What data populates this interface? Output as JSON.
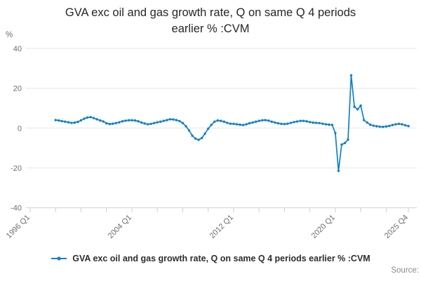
{
  "chart": {
    "title": "GVA exc oil and gas growth rate, Q on same Q 4 periods earlier % :CVM",
    "title_line1": "GVA exc oil and gas growth rate, Q on same Q 4 periods",
    "title_line2": "earlier % :CVM",
    "y_unit": "%"
  },
  "legend": {
    "series_label": "GVA exc oil and gas growth rate, Q on same Q 4 periods earlier % :CVM"
  },
  "footer": {
    "source": "Source:"
  },
  "colors": {
    "line": "#1380c4",
    "grid": "#e6e6e6",
    "axis": "#c6d0e2",
    "tick_text": "#6d6d6d"
  },
  "chart_data": {
    "type": "line",
    "title": "GVA exc oil and gas growth rate, Q on same Q 4 periods earlier % :CVM",
    "xlabel": "",
    "ylabel": "%",
    "ylim": [
      -40,
      40
    ],
    "y_ticks": [
      40,
      20,
      0,
      -20,
      -40
    ],
    "grid": "horizontal",
    "legend_position": "bottom",
    "x_axis": {
      "minor_ticks_years": [
        1996,
        1998,
        2000,
        2002,
        2004,
        2006,
        2008,
        2010,
        2012,
        2014,
        2016,
        2018,
        2020,
        2022,
        2024,
        2025.75
      ],
      "labeled_ticks": [
        {
          "label": "1996 Q1",
          "year": 1996.0
        },
        {
          "label": "2004 Q1",
          "year": 2004.0
        },
        {
          "label": "2012 Q1",
          "year": 2012.0
        },
        {
          "label": "2020 Q1",
          "year": 2020.0
        },
        {
          "label": "2025 Q4",
          "year": 2025.75
        }
      ]
    },
    "series": [
      {
        "name": "GVA exc oil and gas growth rate, Q on same Q 4 periods earlier % :CVM",
        "start_period": "1998 Q1",
        "start_year_frac": 1998.0,
        "period_step_years": 0.25,
        "values": [
          4.0,
          3.8,
          3.5,
          3.2,
          2.9,
          2.6,
          2.7,
          3.1,
          3.9,
          4.7,
          5.3,
          5.5,
          5.0,
          4.4,
          3.8,
          3.3,
          2.4,
          2.0,
          2.2,
          2.5,
          2.9,
          3.4,
          3.7,
          3.9,
          3.9,
          3.8,
          3.4,
          2.8,
          2.3,
          1.9,
          2.1,
          2.5,
          2.9,
          3.2,
          3.6,
          4.0,
          4.4,
          4.3,
          4.0,
          3.5,
          2.5,
          0.9,
          -1.2,
          -3.8,
          -5.3,
          -5.9,
          -5.0,
          -2.8,
          -0.3,
          1.6,
          3.2,
          3.8,
          3.6,
          3.2,
          2.6,
          2.2,
          2.1,
          1.9,
          1.7,
          1.5,
          1.9,
          2.4,
          2.8,
          3.2,
          3.6,
          3.9,
          4.0,
          3.7,
          3.2,
          2.8,
          2.4,
          2.1,
          2.0,
          2.2,
          2.6,
          3.0,
          3.3,
          3.6,
          3.6,
          3.4,
          3.0,
          2.7,
          2.6,
          2.5,
          2.2,
          1.9,
          1.7,
          1.6,
          -2.5,
          -21.5,
          -8.3,
          -7.5,
          -5.8,
          26.5,
          10.7,
          9.4,
          11.3,
          4.0,
          2.8,
          1.7,
          1.2,
          0.9,
          0.7,
          0.6,
          0.8,
          1.1,
          1.5,
          1.9,
          2.1,
          1.9,
          1.4,
          1.0
        ]
      }
    ]
  }
}
